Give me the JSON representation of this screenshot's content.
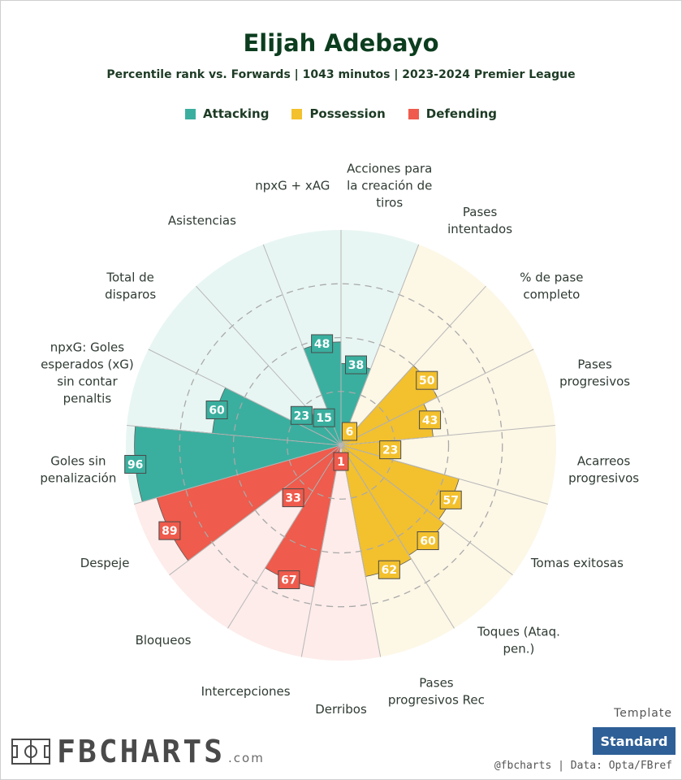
{
  "header": {
    "title": "Elijah Adebayo",
    "subtitle": "Percentile rank vs. Forwards | 1043 minutos | 2023-2024 Premier League"
  },
  "legend": [
    {
      "label": "Attacking",
      "color": "#3aaf9f"
    },
    {
      "label": "Possession",
      "color": "#f3c12e"
    },
    {
      "label": "Defending",
      "color": "#ef5b4c"
    }
  ],
  "chart_data": {
    "type": "polar-bar",
    "rmax": 100,
    "rings": [
      25,
      50,
      75
    ],
    "categories": [
      {
        "label": "Acciones para la creación de tiros",
        "value": 38,
        "group": "Attacking"
      },
      {
        "label": "Pases intentados",
        "value": 6,
        "group": "Possession"
      },
      {
        "label": "% de pase completo",
        "value": 50,
        "group": "Possession"
      },
      {
        "label": "Pases progresivos",
        "value": 43,
        "group": "Possession"
      },
      {
        "label": "Acarreos progresivos",
        "value": 23,
        "group": "Possession"
      },
      {
        "label": "Tomas exitosas",
        "value": 57,
        "group": "Possession"
      },
      {
        "label": "Toques (Ataq. pen.)",
        "value": 60,
        "group": "Possession"
      },
      {
        "label": "Pases progresivos Rec",
        "value": 62,
        "group": "Possession"
      },
      {
        "label": "Derribos",
        "value": 1,
        "group": "Defending"
      },
      {
        "label": "Intercepciones",
        "value": 67,
        "group": "Defending"
      },
      {
        "label": "Bloqueos",
        "value": 33,
        "group": "Defending"
      },
      {
        "label": "Despeje",
        "value": 89,
        "group": "Defending"
      },
      {
        "label": "Goles sin penalización",
        "value": 96,
        "group": "Attacking"
      },
      {
        "label": "npxG: Goles esperados (xG) sin contar penaltis",
        "value": 60,
        "group": "Attacking"
      },
      {
        "label": "Total de disparos",
        "value": 23,
        "group": "Attacking"
      },
      {
        "label": "Asistencias",
        "value": 15,
        "group": "Attacking"
      },
      {
        "label": "npxG + xAG",
        "value": 48,
        "group": "Attacking"
      }
    ]
  },
  "footer": {
    "brand": "FBCHARTS",
    "brand_tld": ".com",
    "template_label": "Template",
    "template_value": "Standard",
    "credits": "@fbcharts | Data: Opta/FBref"
  }
}
